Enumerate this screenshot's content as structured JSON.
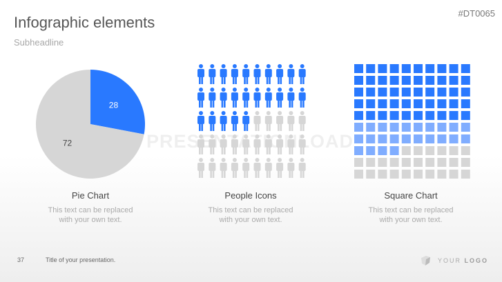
{
  "header": {
    "title": "Infographic elements",
    "subheadline": "Subheadline",
    "code": "#DT0065"
  },
  "watermark": "PRESENTATIONLOAD",
  "colors": {
    "blue": "#2979ff",
    "light_blue": "#80adff",
    "grey": "#d6d6d6"
  },
  "pie": {
    "label": "Pie Chart",
    "description_1": "This text can be replaced",
    "description_2": "with your own text.",
    "slices": [
      {
        "value": 28,
        "label": "28",
        "color": "#2979ff"
      },
      {
        "value": 72,
        "label": "72",
        "color": "#d6d6d6"
      }
    ]
  },
  "people": {
    "label": "People Icons",
    "description_1": "This text can be replaced",
    "description_2": "with your own text.",
    "total": 50,
    "highlighted": 25,
    "columns": 10
  },
  "squares": {
    "label": "Square Chart",
    "description_1": "This text can be replaced",
    "description_2": "with your own text.",
    "dark": 50,
    "light": 24,
    "grey": 26,
    "columns": 10
  },
  "footer": {
    "page": "37",
    "title": "Title of your presentation.",
    "logo_your": "YOUR",
    "logo_logo": "LOGO"
  }
}
